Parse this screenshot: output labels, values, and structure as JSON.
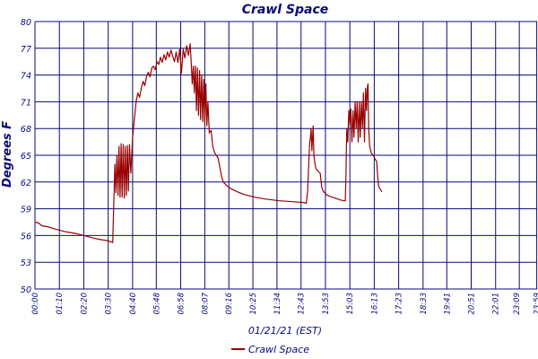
{
  "chart_data": {
    "type": "line",
    "title": "Crawl Space",
    "xlabel": "01/21/21 (EST)",
    "ylabel": "Degrees F",
    "ylim": [
      50,
      80
    ],
    "yticks": [
      50,
      53,
      56,
      59,
      62,
      65,
      68,
      71,
      74,
      77,
      80
    ],
    "x_range_minutes": [
      0,
      1440
    ],
    "xticks": [
      {
        "label": "00:00",
        "min": 0
      },
      {
        "label": "01:10",
        "min": 70
      },
      {
        "label": "02:20",
        "min": 140
      },
      {
        "label": "03:30",
        "min": 210
      },
      {
        "label": "04:40",
        "min": 280
      },
      {
        "label": "05:48",
        "min": 348
      },
      {
        "label": "06:58",
        "min": 418
      },
      {
        "label": "08:07",
        "min": 487
      },
      {
        "label": "09:16",
        "min": 556
      },
      {
        "label": "10:25",
        "min": 625
      },
      {
        "label": "11:34",
        "min": 694
      },
      {
        "label": "12:43",
        "min": 763
      },
      {
        "label": "13:53",
        "min": 833
      },
      {
        "label": "15:03",
        "min": 903
      },
      {
        "label": "16:13",
        "min": 973
      },
      {
        "label": "17:23",
        "min": 1043
      },
      {
        "label": "18:33",
        "min": 1113
      },
      {
        "label": "19:41",
        "min": 1181
      },
      {
        "label": "20:51",
        "min": 1251
      },
      {
        "label": "22:01",
        "min": 1321
      },
      {
        "label": "23:09",
        "min": 1389
      },
      {
        "label": "23:59",
        "min": 1439
      }
    ],
    "grid": true,
    "legend_position": "bottom-center",
    "series": [
      {
        "name": "Crawl Space",
        "color": "#990000",
        "points": [
          [
            0,
            57.5
          ],
          [
            10,
            57.4
          ],
          [
            20,
            57.1
          ],
          [
            35,
            57.0
          ],
          [
            60,
            56.7
          ],
          [
            90,
            56.4
          ],
          [
            120,
            56.2
          ],
          [
            150,
            55.9
          ],
          [
            180,
            55.6
          ],
          [
            210,
            55.4
          ],
          [
            223,
            55.2
          ],
          [
            227,
            61.0
          ],
          [
            229,
            64.0
          ],
          [
            232,
            60.8
          ],
          [
            235,
            65.0
          ],
          [
            238,
            60.5
          ],
          [
            241,
            66.0
          ],
          [
            244,
            60.3
          ],
          [
            247,
            66.3
          ],
          [
            250,
            60.3
          ],
          [
            253,
            66.2
          ],
          [
            256,
            60.2
          ],
          [
            259,
            66.0
          ],
          [
            262,
            60.5
          ],
          [
            265,
            66.1
          ],
          [
            268,
            61.0
          ],
          [
            271,
            66.2
          ],
          [
            275,
            63.0
          ],
          [
            280,
            67.0
          ],
          [
            285,
            69.0
          ],
          [
            290,
            71.0
          ],
          [
            295,
            72.0
          ],
          [
            300,
            71.5
          ],
          [
            305,
            72.5
          ],
          [
            310,
            73.3
          ],
          [
            315,
            72.8
          ],
          [
            320,
            73.8
          ],
          [
            325,
            74.3
          ],
          [
            330,
            73.8
          ],
          [
            335,
            74.8
          ],
          [
            340,
            75.0
          ],
          [
            345,
            74.6
          ],
          [
            350,
            75.5
          ],
          [
            355,
            75.2
          ],
          [
            360,
            76.0
          ],
          [
            365,
            75.4
          ],
          [
            370,
            76.3
          ],
          [
            375,
            75.7
          ],
          [
            380,
            76.6
          ],
          [
            385,
            76.0
          ],
          [
            390,
            76.8
          ],
          [
            395,
            76.1
          ],
          [
            400,
            75.5
          ],
          [
            405,
            76.6
          ],
          [
            410,
            75.4
          ],
          [
            415,
            76.9
          ],
          [
            420,
            74.2
          ],
          [
            425,
            76.9
          ],
          [
            430,
            75.9
          ],
          [
            435,
            77.3
          ],
          [
            440,
            76.2
          ],
          [
            445,
            77.5
          ],
          [
            448,
            75.5
          ],
          [
            451,
            73.0
          ],
          [
            454,
            75.0
          ],
          [
            457,
            72.0
          ],
          [
            460,
            75.0
          ],
          [
            463,
            70.0
          ],
          [
            466,
            74.8
          ],
          [
            469,
            69.5
          ],
          [
            472,
            74.5
          ],
          [
            475,
            69.0
          ],
          [
            478,
            74.0
          ],
          [
            481,
            68.8
          ],
          [
            484,
            73.5
          ],
          [
            487,
            68.5
          ],
          [
            490,
            73.0
          ],
          [
            493,
            68.3
          ],
          [
            496,
            71.0
          ],
          [
            500,
            67.5
          ],
          [
            505,
            67.8
          ],
          [
            510,
            66.0
          ],
          [
            515,
            65.3
          ],
          [
            520,
            65.0
          ],
          [
            525,
            64.7
          ],
          [
            530,
            63.7
          ],
          [
            535,
            62.6
          ],
          [
            540,
            62.0
          ],
          [
            550,
            61.6
          ],
          [
            560,
            61.3
          ],
          [
            580,
            60.9
          ],
          [
            600,
            60.6
          ],
          [
            630,
            60.3
          ],
          [
            660,
            60.1
          ],
          [
            700,
            59.9
          ],
          [
            740,
            59.8
          ],
          [
            770,
            59.7
          ],
          [
            778,
            59.6
          ],
          [
            782,
            61.0
          ],
          [
            785,
            64.0
          ],
          [
            788,
            66.5
          ],
          [
            790,
            67.0
          ],
          [
            792,
            68.0
          ],
          [
            794,
            65.5
          ],
          [
            796,
            67.0
          ],
          [
            798,
            68.3
          ],
          [
            800,
            65.0
          ],
          [
            803,
            64.0
          ],
          [
            806,
            63.5
          ],
          [
            812,
            63.2
          ],
          [
            818,
            63.0
          ],
          [
            822,
            61.5
          ],
          [
            826,
            61.0
          ],
          [
            835,
            60.6
          ],
          [
            845,
            60.4
          ],
          [
            860,
            60.2
          ],
          [
            875,
            60.0
          ],
          [
            885,
            59.9
          ],
          [
            890,
            59.9
          ],
          [
            892,
            63.0
          ],
          [
            894,
            68.0
          ],
          [
            897,
            66.5
          ],
          [
            900,
            70.0
          ],
          [
            903,
            68.5
          ],
          [
            906,
            70.2
          ],
          [
            909,
            66.5
          ],
          [
            912,
            70.0
          ],
          [
            915,
            67.0
          ],
          [
            918,
            71.0
          ],
          [
            921,
            68.0
          ],
          [
            924,
            71.0
          ],
          [
            927,
            66.5
          ],
          [
            930,
            71.0
          ],
          [
            933,
            67.0
          ],
          [
            936,
            71.0
          ],
          [
            939,
            68.0
          ],
          [
            942,
            72.0
          ],
          [
            945,
            66.5
          ],
          [
            948,
            72.5
          ],
          [
            951,
            70.0
          ],
          [
            953,
            72.5
          ],
          [
            955,
            73.0
          ],
          [
            957,
            68.0
          ],
          [
            960,
            66.0
          ],
          [
            965,
            65.2
          ],
          [
            970,
            65.0
          ],
          [
            975,
            64.6
          ],
          [
            980,
            64.3
          ],
          [
            983,
            62.5
          ],
          [
            986,
            61.5
          ],
          [
            990,
            61.2
          ],
          [
            993,
            61.0
          ],
          [
            995,
            60.9
          ]
        ]
      }
    ]
  }
}
